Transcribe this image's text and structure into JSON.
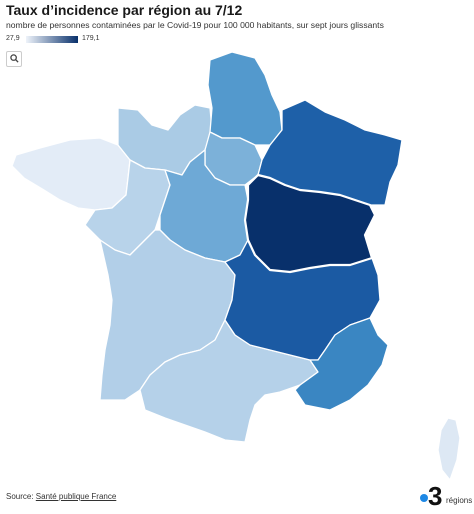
{
  "title": "Taux d’incidence par région au 7/12",
  "subtitle": "nombre de personnes contaminées par le Covid-19 pour 100 000 habitants, sur sept jours glissants",
  "legend": {
    "min": "27,9",
    "max": "179,1"
  },
  "zoom_icon": "search-icon",
  "source": {
    "prefix": "Source: ",
    "link": "Santé publique France"
  },
  "logo": {
    "number": "3",
    "word": "régions"
  },
  "colors": {
    "scale_low": "#eef3fa",
    "scale_high": "#08306b",
    "regions": {
      "hauts-de-france": "#5399cd",
      "normandie": "#aacbe5",
      "ile-de-france": "#7cb1d9",
      "grand-est": "#1e60a8",
      "bretagne": "#e3ecf7",
      "pays-de-la-loire": "#b8d3ea",
      "centre-val-de-loire": "#6ea9d6",
      "bourgogne-franche-comte": "#08306b",
      "nouvelle-aquitaine": "#b2cfe8",
      "auvergne-rhone-alpes": "#1b5aa3",
      "occitanie": "#b5d1e9",
      "provence-alpes-cote-d-azur": "#3a86c2",
      "corse": "#dde8f4"
    }
  }
}
